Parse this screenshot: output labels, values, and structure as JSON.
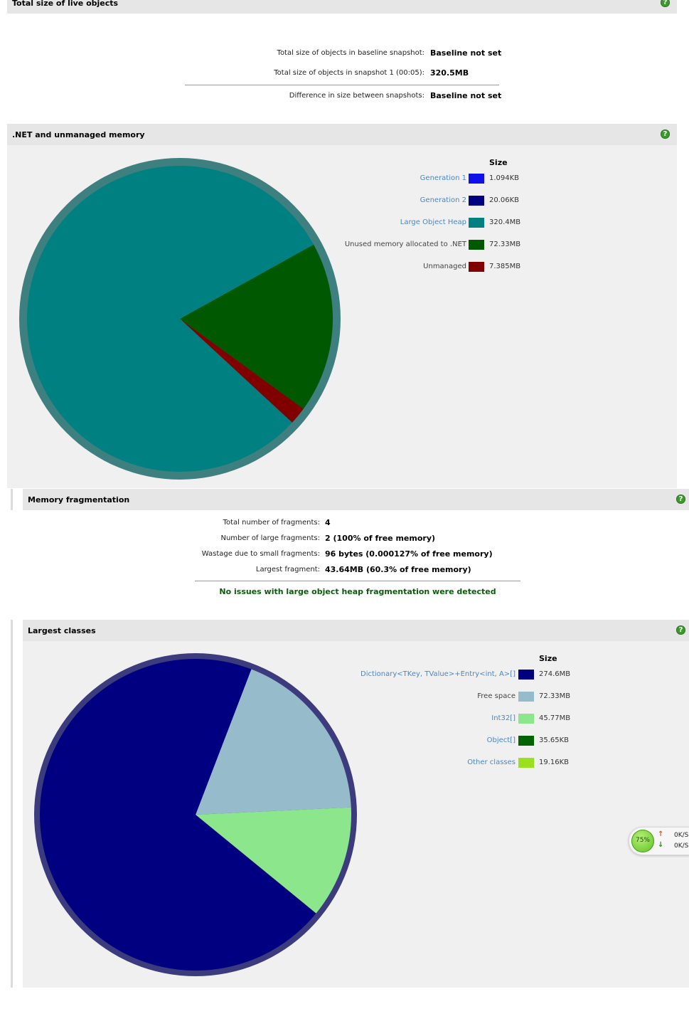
{
  "sections": {
    "live_objects": {
      "title": "Total size of live objects",
      "rows": [
        {
          "label": "Total size of objects in baseline snapshot:",
          "value": "Baseline not set"
        },
        {
          "label": "Total size of objects in snapshot 1 (00:05):",
          "value": "320.5MB"
        },
        {
          "label": "Difference in size between snapshots:",
          "value": "Baseline not set"
        }
      ]
    },
    "net_memory": {
      "title": ".NET and unmanaged memory",
      "legend_header": "Size",
      "legend": [
        {
          "name": "Generation 1",
          "value": "1.094KB",
          "color": "#1010e8",
          "link": true
        },
        {
          "name": "Generation 2",
          "value": "20.06KB",
          "color": "#000080",
          "link": true
        },
        {
          "name": "Large Object Heap",
          "value": "320.4MB",
          "color": "#008080",
          "link": true
        },
        {
          "name": "Unused memory allocated to .NET",
          "value": "72.33MB",
          "color": "#005800",
          "link": false
        },
        {
          "name": "Unmanaged",
          "value": "7.385MB",
          "color": "#800000",
          "link": false
        }
      ]
    },
    "fragmentation": {
      "title": "Memory fragmentation",
      "rows": [
        {
          "label": "Total number of fragments:",
          "value": "4"
        },
        {
          "label": "Number of large fragments:",
          "value": "2 (100% of free memory)"
        },
        {
          "label": "Wastage due to small fragments:",
          "value": "96 bytes (0.000127% of free memory)"
        },
        {
          "label": "Largest fragment:",
          "value": "43.64MB (60.3% of free memory)"
        }
      ],
      "status": "No issues with large object heap fragmentation were detected"
    },
    "largest_classes": {
      "title": "Largest classes",
      "legend_header": "Size",
      "legend": [
        {
          "name": "Dictionary<TKey, TValue>+Entry<int, A>[]",
          "value": "274.6MB",
          "color": "#000080",
          "link": true
        },
        {
          "name": "Free space",
          "value": "72.33MB",
          "color": "#96bccb",
          "link": false
        },
        {
          "name": "Int32[]",
          "value": "45.77MB",
          "color": "#8ce68c",
          "link": true
        },
        {
          "name": "Object[]",
          "value": "35.65KB",
          "color": "#006400",
          "link": true
        },
        {
          "name": "Other classes",
          "value": "19.16KB",
          "color": "#9be01e",
          "link": true
        }
      ]
    }
  },
  "help_icon": "?",
  "net_widget": {
    "percent": "75%",
    "up": "0K/S",
    "down": "0K/S",
    "up_arrow": "↑",
    "down_arrow": "↓"
  },
  "chart_data": [
    {
      "type": "pie",
      "categories": [
        "Generation 1",
        "Generation 2",
        "Large Object Heap",
        "Unused memory allocated to .NET",
        "Unmanaged"
      ],
      "values": [
        0.001094,
        0.02006,
        320.4,
        72.33,
        7.385
      ],
      "units": "MB",
      "colors": [
        "#1010e8",
        "#000080",
        "#008080",
        "#005800",
        "#800000"
      ]
    },
    {
      "type": "pie",
      "categories": [
        "Dictionary<TKey, TValue>+Entry<int, A>[]",
        "Free space",
        "Int32[]",
        "Object[]",
        "Other classes"
      ],
      "values": [
        274.6,
        72.33,
        45.77,
        0.03565,
        0.01916
      ],
      "units": "MB",
      "colors": [
        "#000080",
        "#96bccb",
        "#8ce68c",
        "#006400",
        "#9be01e"
      ]
    }
  ]
}
